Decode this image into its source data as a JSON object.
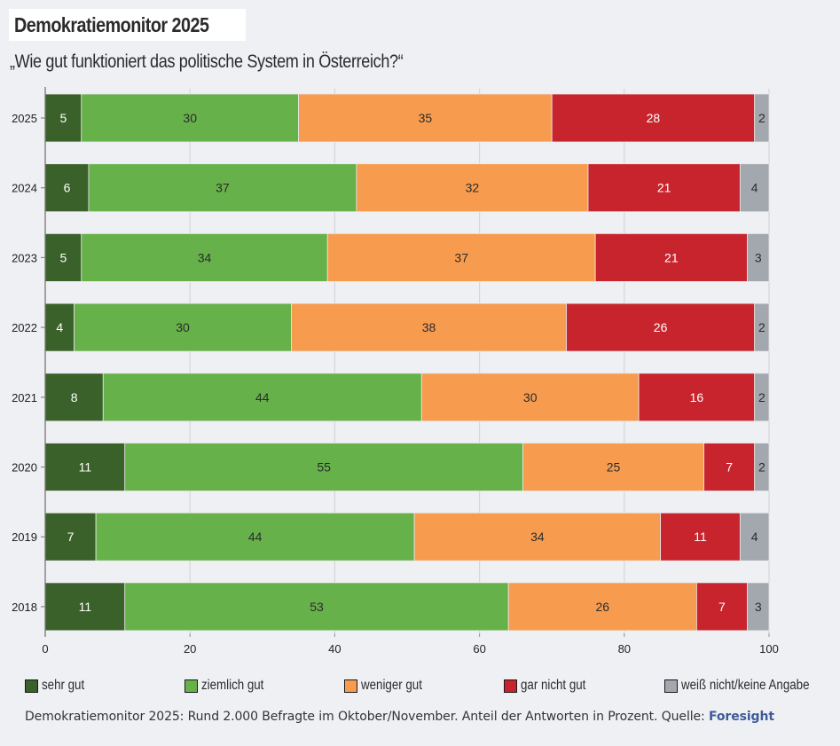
{
  "header": {
    "title": "Demokratiemonitor 2025",
    "subtitle": "„Wie gut funktioniert das politische System in Österreich?“"
  },
  "chart_data": {
    "type": "bar",
    "orientation": "horizontal",
    "stacked": true,
    "title": "Demokratiemonitor 2025",
    "subtitle": "„Wie gut funktioniert das politische System in Österreich?“",
    "xlabel": "",
    "ylabel": "",
    "xlim": [
      0,
      100
    ],
    "x_ticks": [
      0,
      20,
      40,
      60,
      80,
      100
    ],
    "grid": true,
    "legend_position": "bottom",
    "categories": [
      "2025",
      "2024",
      "2023",
      "2022",
      "2021",
      "2020",
      "2019",
      "2018"
    ],
    "series": [
      {
        "name": "sehr gut",
        "color": "#3a6129",
        "label_color": "#ffffff",
        "values": [
          5,
          6,
          5,
          4,
          8,
          11,
          7,
          11
        ]
      },
      {
        "name": "ziemlich gut",
        "color": "#66b14a",
        "label_color": "#2b2b2b",
        "values": [
          30,
          37,
          34,
          30,
          44,
          55,
          44,
          53
        ]
      },
      {
        "name": "weniger gut",
        "color": "#f79c4f",
        "label_color": "#2b2b2b",
        "values": [
          35,
          32,
          37,
          38,
          30,
          25,
          34,
          26
        ]
      },
      {
        "name": "gar nicht gut",
        "color": "#c8242d",
        "label_color": "#ffffff",
        "values": [
          28,
          21,
          21,
          26,
          16,
          7,
          11,
          7
        ]
      },
      {
        "name": "weiß nicht/keine Angabe",
        "color": "#a3a8ae",
        "label_color": "#2b2b2b",
        "values": [
          2,
          4,
          3,
          2,
          2,
          2,
          4,
          3
        ]
      }
    ]
  },
  "footer": {
    "text": "Demokratiemonitor 2025: Rund 2.000 Befragte im Oktober/November. Anteil der Antworten in Prozent. Quelle: ",
    "source": "Foresight"
  }
}
